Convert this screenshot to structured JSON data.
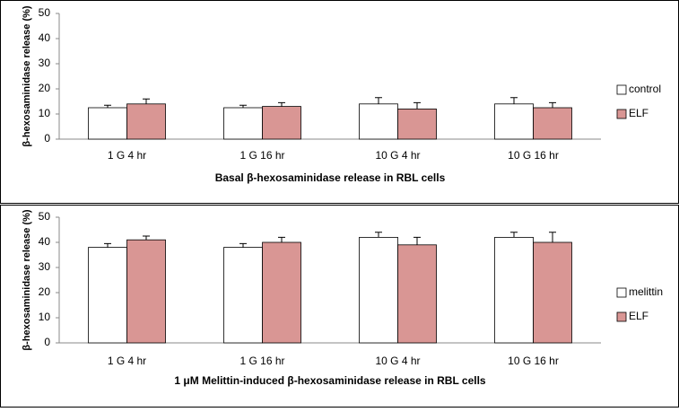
{
  "chart_data": [
    {
      "type": "bar",
      "title": "Basal β-hexosaminidase  release  in RBL cells",
      "y_label": "β-hexosaminidase release (%)",
      "categories": [
        "1 G 4 hr",
        "1 G 16 hr",
        "10 G 4 hr",
        "10 G 16 hr"
      ],
      "series": [
        {
          "name": "control",
          "color": "#ffffff",
          "values": [
            12.5,
            12.5,
            14,
            14
          ],
          "errors": [
            1,
            1,
            2.5,
            2.5
          ]
        },
        {
          "name": "ELF",
          "color": "#d99694",
          "values": [
            14,
            13,
            12,
            12.5
          ],
          "errors": [
            2,
            1.5,
            2.5,
            2
          ]
        }
      ],
      "ylim": [
        0,
        50
      ],
      "yticks": [
        0,
        10,
        20,
        30,
        40,
        50
      ],
      "grid": false,
      "legend": "right"
    },
    {
      "type": "bar",
      "title": "1 μM Melittin-induced β-hexosaminidase  release  in RBL cells",
      "y_label": "β-hexosaminidase release (%)",
      "categories": [
        "1 G 4 hr",
        "1 G 16 hr",
        "10 G 4 hr",
        "10 G 16 hr"
      ],
      "series": [
        {
          "name": "melittin",
          "color": "#ffffff",
          "values": [
            38,
            38,
            42,
            42
          ],
          "errors": [
            1.5,
            1.5,
            2,
            2
          ]
        },
        {
          "name": "ELF",
          "color": "#d99694",
          "values": [
            41,
            40,
            39,
            40
          ],
          "errors": [
            1.5,
            2,
            3,
            4
          ]
        }
      ],
      "ylim": [
        0,
        50
      ],
      "yticks": [
        0,
        10,
        20,
        30,
        40,
        50
      ],
      "grid": false,
      "legend": "right"
    }
  ]
}
